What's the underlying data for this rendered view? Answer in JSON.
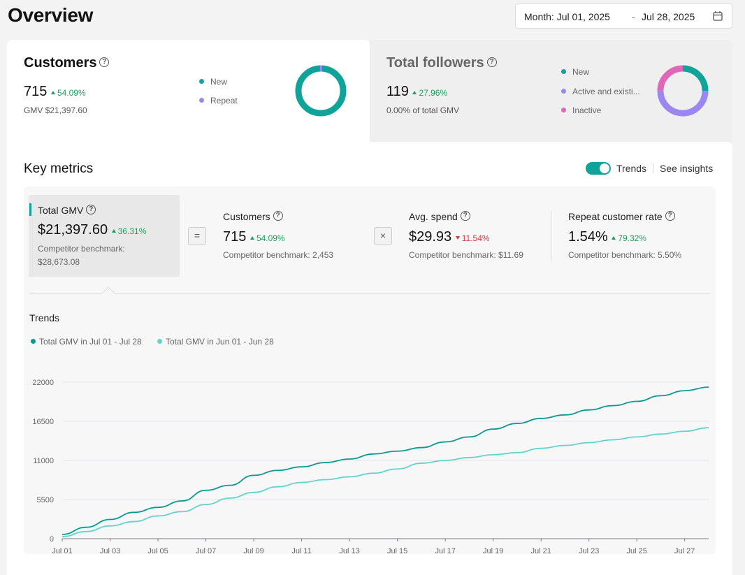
{
  "header": {
    "title": "Overview"
  },
  "date_range": {
    "start": "Month: Jul 01, 2025",
    "separator": "-",
    "end": "Jul 28, 2025"
  },
  "customers_card": {
    "title": "Customers",
    "value": "715",
    "delta": "54.09%",
    "sub": "GMV $21,397.60",
    "legend": [
      {
        "label": "New",
        "color": "#0fa39a"
      },
      {
        "label": "Repeat",
        "color": "#9b86f2"
      }
    ]
  },
  "followers_card": {
    "title": "Total followers",
    "value": "119",
    "delta": "27.96%",
    "sub": "0.00% of total GMV",
    "legend": [
      {
        "label": "New",
        "color": "#0fa39a"
      },
      {
        "label": "Active and existi...",
        "color": "#9b86f2"
      },
      {
        "label": "Inactive",
        "color": "#e066b8"
      }
    ]
  },
  "key_metrics": {
    "title": "Key metrics",
    "trends_label": "Trends",
    "insights_label": "See insights",
    "metrics": [
      {
        "label": "Total GMV",
        "value": "$21,397.60",
        "delta": "36.31%",
        "bench_label": "Competitor benchmark:",
        "bench_value": "$28,673.08"
      },
      {
        "label": "Customers",
        "value": "715",
        "delta": "54.09%",
        "bench": "Competitor benchmark: 2,453"
      },
      {
        "label": "Avg. spend",
        "value": "$29.93",
        "delta": "11.54%",
        "bench": "Competitor benchmark: $11.69"
      },
      {
        "label": "Repeat customer rate",
        "value": "1.54%",
        "delta": "79.32%",
        "bench": "Competitor benchmark: 5.50%"
      }
    ],
    "ops": {
      "equals": "=",
      "times": "×"
    }
  },
  "trends": {
    "title": "Trends",
    "legend": [
      {
        "label": "Total GMV in Jul 01 - Jul 28",
        "color": "#0a9a91"
      },
      {
        "label": "Total GMV in Jun 01 - Jun 28",
        "color": "#62d4cb"
      }
    ]
  },
  "chart_data": {
    "type": "line",
    "x": [
      "Jul 01",
      "Jul 02",
      "Jul 03",
      "Jul 04",
      "Jul 05",
      "Jul 06",
      "Jul 07",
      "Jul 08",
      "Jul 09",
      "Jul 10",
      "Jul 11",
      "Jul 12",
      "Jul 13",
      "Jul 14",
      "Jul 15",
      "Jul 16",
      "Jul 17",
      "Jul 18",
      "Jul 19",
      "Jul 20",
      "Jul 21",
      "Jul 22",
      "Jul 23",
      "Jul 24",
      "Jul 25",
      "Jul 26",
      "Jul 27",
      "Jul 28"
    ],
    "tick_labels": [
      "Jul 01",
      "Jul 03",
      "Jul 05",
      "Jul 07",
      "Jul 09",
      "Jul 11",
      "Jul 13",
      "Jul 15",
      "Jul 17",
      "Jul 19",
      "Jul 21",
      "Jul 23",
      "Jul 25",
      "Jul 27"
    ],
    "y_ticks": [
      "0",
      "5500",
      "11000",
      "16500",
      "22000"
    ],
    "ylim": [
      0,
      22000
    ],
    "grid": true,
    "series": [
      {
        "name": "Total GMV in Jul 01 - Jul 28",
        "color": "#0a9a91",
        "values": [
          600,
          1600,
          2700,
          3700,
          4400,
          5300,
          6800,
          7500,
          8900,
          9600,
          10100,
          10700,
          11200,
          11900,
          12300,
          12800,
          13600,
          14300,
          15400,
          16200,
          16900,
          17400,
          18100,
          18700,
          19300,
          20100,
          20800,
          21300
        ]
      },
      {
        "name": "Total GMV in Jun 01 - Jun 28",
        "color": "#62d4cb",
        "values": [
          300,
          1000,
          1800,
          2400,
          3200,
          3800,
          4800,
          5700,
          6500,
          7300,
          7900,
          8300,
          8700,
          9200,
          9800,
          10600,
          11000,
          11400,
          11800,
          12100,
          12700,
          13100,
          13500,
          13900,
          14300,
          14700,
          15100,
          15600
        ]
      }
    ]
  }
}
